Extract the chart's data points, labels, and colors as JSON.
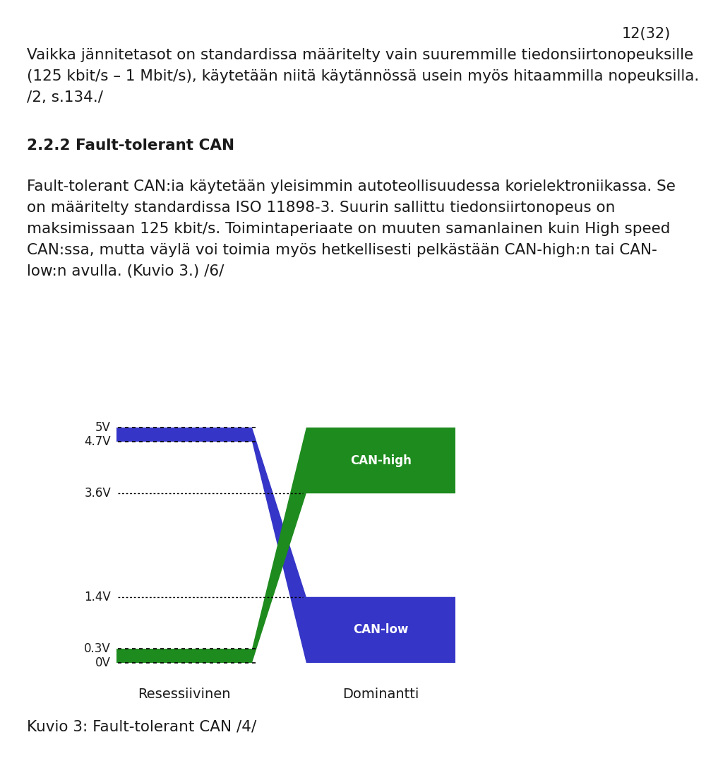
{
  "page_number": "12(32)",
  "para1_line1": "Vaikka jännitetasot on standardissa määritelty vain suuremmille tiedonsiirtonopeuksille",
  "para1_line2": "(125 kbit/s – 1 Mbit/s), käytetään niitä käytännössä usein myös hitaammilla nopeuksilla.",
  "para1_line3": "/2, s.134./",
  "section_title": "2.2.2 Fault-tolerant CAN",
  "para2_line1": "Fault-tolerant CAN:ia käytetään yleisimmin autoteollisuudessa korielektroniikassa. Se",
  "para2_line2": "on määritelty standardissa ISO 11898-3. Suurin sallittu tiedonsiirtonopeus on",
  "para2_line3": "maksimissaan 125 kbit/s. Toimintaperiaate on muuten samanlainen kuin High speed",
  "para2_line4": "CAN:ssa, mutta väylä voi toimia myös hetkellisesti pelkästään CAN-high:n tai CAN-",
  "para2_line5": "low:n avulla. (Kuvio 3.) /6/",
  "caption": "Kuvio 3: Fault-tolerant CAN /4/",
  "label_recessiivinen": "Resessiivinen",
  "label_dominantti": "Dominantti",
  "label_can_high": "CAN-high",
  "label_can_low": "CAN-low",
  "voltage_labels": [
    "5V",
    "4.7V",
    "3.6V",
    "1.4V",
    "0.3V",
    "0V"
  ],
  "voltage_values": [
    5.0,
    4.7,
    3.6,
    1.4,
    0.3,
    0.0
  ],
  "blue_color": "#3535C8",
  "green_color": "#1E8B1E",
  "text_color": "#1a1a1a",
  "bg_color": "#FFFFFF",
  "font_size_body": 15.5,
  "font_size_section": 15.5,
  "font_size_page": 15,
  "font_size_diag_label": 12,
  "font_size_voltage": 12,
  "font_size_axis_label": 14
}
